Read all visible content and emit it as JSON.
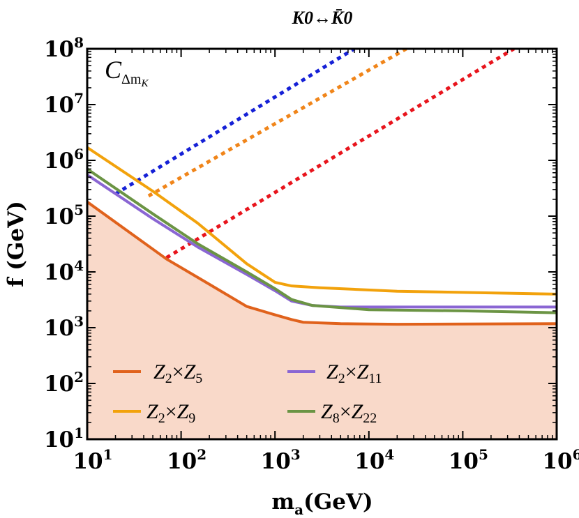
{
  "chart_data": {
    "type": "line",
    "title": "K0↔K̄0",
    "panel_label": "CΔmK",
    "xlabel": "m",
    "xlabel_sub": "a",
    "xlabel_unit": "(GeV)",
    "ylabel": "f (GeV)",
    "x_scale": "log",
    "y_scale": "log",
    "xlim": [
      10,
      1000000
    ],
    "ylim": [
      10,
      100000000
    ],
    "x_ticks": [
      {
        "value": 10,
        "base": "10",
        "exp": "1"
      },
      {
        "value": 100,
        "base": "10",
        "exp": "2"
      },
      {
        "value": 1000,
        "base": "10",
        "exp": "3"
      },
      {
        "value": 10000,
        "base": "10",
        "exp": "4"
      },
      {
        "value": 100000,
        "base": "10",
        "exp": "5"
      },
      {
        "value": 1000000,
        "base": "10",
        "exp": "6"
      }
    ],
    "y_ticks": [
      {
        "value": 10,
        "base": "10",
        "exp": "1"
      },
      {
        "value": 100,
        "base": "10",
        "exp": "2"
      },
      {
        "value": 1000,
        "base": "10",
        "exp": "3"
      },
      {
        "value": 10000,
        "base": "10",
        "exp": "4"
      },
      {
        "value": 100000,
        "base": "10",
        "exp": "5"
      },
      {
        "value": 1000000,
        "base": "10",
        "exp": "6"
      },
      {
        "value": 10000000,
        "base": "10",
        "exp": "7"
      },
      {
        "value": 100000000,
        "base": "10",
        "exp": "8"
      }
    ],
    "excluded_region": {
      "color": "#f9d9c9",
      "boundary_series": "Z2×Z5"
    },
    "series": [
      {
        "name": "Z2×Z5",
        "a": "Z",
        "a_sub": "2",
        "b": "Z",
        "b_sub": "5",
        "color": "#e0621c",
        "x": [
          10,
          70,
          200,
          500,
          1000,
          1500,
          2000,
          5000,
          20000,
          1000000
        ],
        "y": [
          180000,
          17000,
          6000,
          2400,
          1700,
          1400,
          1250,
          1180,
          1150,
          1180
        ]
      },
      {
        "name": "Z2×Z9",
        "a": "Z",
        "a_sub": "2",
        "b": "Z",
        "b_sub": "9",
        "color": "#f2a20c",
        "x": [
          10,
          50,
          150,
          500,
          1000,
          1500,
          3000,
          20000,
          1000000
        ],
        "y": [
          1700000,
          280000,
          75000,
          14000,
          6500,
          5600,
          5200,
          4500,
          4000
        ]
      },
      {
        "name": "Z2×Z11",
        "a": "Z",
        "a_sub": "2",
        "b": "Z",
        "b_sub": "11",
        "color": "#8a66d3",
        "x": [
          10,
          50,
          150,
          500,
          1000,
          1500,
          2500,
          5000,
          20000,
          1000000
        ],
        "y": [
          550000,
          90000,
          28000,
          9000,
          4600,
          3000,
          2500,
          2350,
          2350,
          2350
        ]
      },
      {
        "name": "Z8×Z22",
        "a": "Z",
        "a_sub": "8",
        "b": "Z",
        "b_sub": "22",
        "color": "#6b9444",
        "x": [
          10,
          50,
          150,
          500,
          1000,
          1500,
          2500,
          10000,
          100000,
          1000000
        ],
        "y": [
          700000,
          110000,
          32000,
          10000,
          5000,
          3200,
          2500,
          2100,
          2000,
          1850
        ]
      }
    ],
    "dotted_lines": [
      {
        "color": "#1520d6",
        "x": [
          20,
          7000
        ],
        "y": [
          250000,
          100000000
        ]
      },
      {
        "color": "#f0851a",
        "x": [
          45,
          25000
        ],
        "y": [
          230000,
          100000000
        ]
      },
      {
        "color": "#e8141c",
        "x": [
          70,
          350000
        ],
        "y": [
          18000,
          100000000
        ]
      }
    ]
  }
}
